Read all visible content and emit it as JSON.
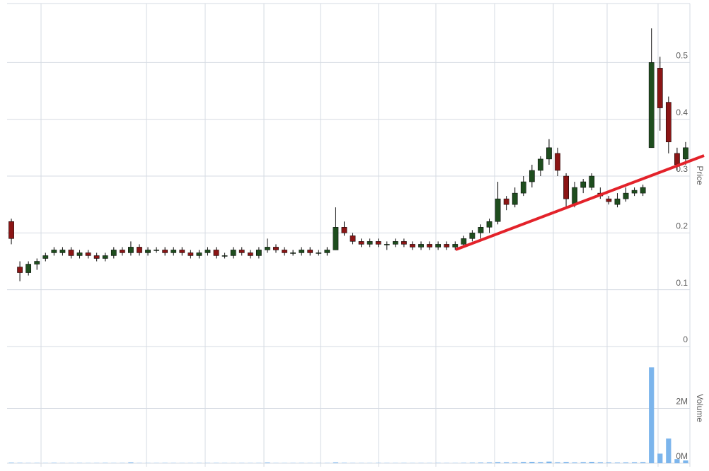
{
  "chart_data": {
    "type": "candlestick",
    "y_label": "Price",
    "y2_label": "Volume",
    "up_color": "#1e4d1e",
    "down_color": "#8b1515",
    "volume_color": "#7cb5ec",
    "grid": true,
    "ylim": [
      0,
      0.6
    ],
    "yticks": [
      0,
      0.1,
      0.2,
      0.3,
      0.4,
      0.5
    ],
    "y2lim": [
      0,
      4000000
    ],
    "y2ticks": [
      {
        "value": 0,
        "label": "0M"
      },
      {
        "value": 2000000,
        "label": "2M"
      }
    ],
    "open": [
      0.22,
      0.14,
      0.13,
      0.145,
      0.155,
      0.165,
      0.165,
      0.17,
      0.16,
      0.165,
      0.16,
      0.155,
      0.16,
      0.17,
      0.165,
      0.175,
      0.165,
      0.17,
      0.17,
      0.165,
      0.17,
      0.165,
      0.16,
      0.165,
      0.17,
      0.16,
      0.16,
      0.17,
      0.165,
      0.16,
      0.17,
      0.175,
      0.17,
      0.165,
      0.165,
      0.17,
      0.165,
      0.165,
      0.17,
      0.21,
      0.195,
      0.185,
      0.18,
      0.185,
      0.18,
      0.18,
      0.185,
      0.18,
      0.175,
      0.18,
      0.175,
      0.18,
      0.175,
      0.18,
      0.19,
      0.2,
      0.21,
      0.22,
      0.26,
      0.25,
      0.27,
      0.29,
      0.31,
      0.33,
      0.34,
      0.3,
      0.25,
      0.28,
      0.28,
      0.27,
      0.26,
      0.25,
      0.26,
      0.27,
      0.27,
      0.35,
      0.49,
      0.43,
      0.34,
      0.33
    ],
    "high": [
      0.225,
      0.15,
      0.15,
      0.155,
      0.165,
      0.175,
      0.175,
      0.175,
      0.17,
      0.17,
      0.165,
      0.165,
      0.175,
      0.175,
      0.185,
      0.18,
      0.175,
      0.175,
      0.175,
      0.175,
      0.175,
      0.17,
      0.17,
      0.175,
      0.175,
      0.165,
      0.175,
      0.175,
      0.17,
      0.175,
      0.19,
      0.18,
      0.175,
      0.17,
      0.175,
      0.175,
      0.17,
      0.175,
      0.245,
      0.22,
      0.2,
      0.19,
      0.19,
      0.19,
      0.185,
      0.19,
      0.19,
      0.185,
      0.185,
      0.185,
      0.185,
      0.185,
      0.185,
      0.195,
      0.205,
      0.215,
      0.225,
      0.29,
      0.265,
      0.28,
      0.3,
      0.32,
      0.335,
      0.365,
      0.35,
      0.305,
      0.29,
      0.295,
      0.305,
      0.28,
      0.265,
      0.27,
      0.28,
      0.28,
      0.285,
      0.56,
      0.51,
      0.44,
      0.35,
      0.36
    ],
    "low": [
      0.18,
      0.115,
      0.125,
      0.135,
      0.15,
      0.16,
      0.16,
      0.155,
      0.155,
      0.155,
      0.15,
      0.15,
      0.155,
      0.16,
      0.16,
      0.16,
      0.16,
      0.165,
      0.16,
      0.16,
      0.16,
      0.155,
      0.155,
      0.16,
      0.155,
      0.155,
      0.155,
      0.16,
      0.155,
      0.155,
      0.165,
      0.165,
      0.16,
      0.16,
      0.16,
      0.16,
      0.16,
      0.16,
      0.17,
      0.195,
      0.18,
      0.175,
      0.175,
      0.175,
      0.17,
      0.175,
      0.175,
      0.17,
      0.17,
      0.17,
      0.17,
      0.17,
      0.17,
      0.175,
      0.185,
      0.19,
      0.2,
      0.215,
      0.24,
      0.245,
      0.265,
      0.28,
      0.3,
      0.32,
      0.3,
      0.245,
      0.245,
      0.27,
      0.275,
      0.26,
      0.25,
      0.245,
      0.255,
      0.265,
      0.265,
      0.35,
      0.38,
      0.34,
      0.31,
      0.32
    ],
    "close": [
      0.19,
      0.13,
      0.145,
      0.15,
      0.16,
      0.17,
      0.17,
      0.16,
      0.165,
      0.16,
      0.155,
      0.16,
      0.17,
      0.165,
      0.175,
      0.165,
      0.17,
      0.17,
      0.165,
      0.17,
      0.165,
      0.16,
      0.165,
      0.17,
      0.16,
      0.16,
      0.17,
      0.165,
      0.16,
      0.17,
      0.175,
      0.17,
      0.165,
      0.165,
      0.17,
      0.165,
      0.165,
      0.17,
      0.21,
      0.2,
      0.185,
      0.18,
      0.185,
      0.18,
      0.18,
      0.185,
      0.18,
      0.175,
      0.18,
      0.175,
      0.18,
      0.175,
      0.18,
      0.19,
      0.2,
      0.21,
      0.22,
      0.26,
      0.25,
      0.27,
      0.29,
      0.31,
      0.33,
      0.35,
      0.31,
      0.26,
      0.28,
      0.29,
      0.3,
      0.265,
      0.255,
      0.26,
      0.27,
      0.275,
      0.28,
      0.5,
      0.42,
      0.36,
      0.32,
      0.35
    ],
    "volume": [
      20000,
      15000,
      10000,
      12000,
      8000,
      15000,
      10000,
      9000,
      12000,
      8000,
      10000,
      14000,
      9000,
      11000,
      30000,
      10000,
      8000,
      9000,
      12000,
      10000,
      8000,
      9000,
      11000,
      10000,
      12000,
      9000,
      8000,
      10000,
      9000,
      11000,
      25000,
      9000,
      8000,
      10000,
      12000,
      9000,
      8000,
      10000,
      30000,
      15000,
      10000,
      9000,
      8000,
      12000,
      10000,
      9000,
      11000,
      8000,
      10000,
      9000,
      12000,
      10000,
      9000,
      15000,
      20000,
      25000,
      30000,
      40000,
      35000,
      30000,
      45000,
      50000,
      40000,
      60000,
      35000,
      45000,
      30000,
      40000,
      50000,
      35000,
      30000,
      25000,
      30000,
      35000,
      40000,
      3500000,
      350000,
      900000,
      150000,
      100000
    ]
  }
}
